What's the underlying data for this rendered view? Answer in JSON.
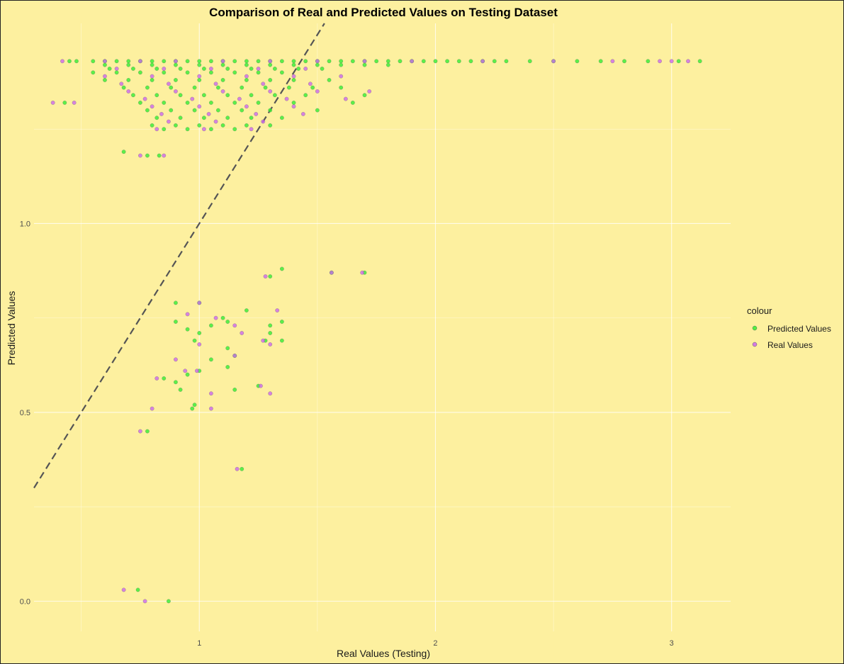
{
  "chart_data": {
    "type": "scatter",
    "title": "Comparison of Real and Predicted Values on Testing Dataset",
    "xlabel": "Real Values (Testing)",
    "ylabel": "Predicted Values",
    "xlim": [
      0.3,
      3.25
    ],
    "ylim": [
      -0.08,
      1.53
    ],
    "x_ticks": [
      1,
      2,
      3
    ],
    "x_tick_labels": [
      "1",
      "2",
      "3"
    ],
    "y_ticks": [
      0.0,
      0.5,
      1.0
    ],
    "y_tick_labels": [
      "0.0",
      "0.5",
      "1.0"
    ],
    "grid": true,
    "legend_title": "colour",
    "legend_position": "right",
    "reference_line": {
      "type": "y=x",
      "style": "dashed",
      "color": "#555555"
    },
    "series": [
      {
        "name": "Predicted Values",
        "color": "#33ee33",
        "points": [
          [
            0.45,
            1.43
          ],
          [
            0.48,
            1.43
          ],
          [
            0.55,
            1.43
          ],
          [
            0.6,
            1.43
          ],
          [
            0.65,
            1.43
          ],
          [
            0.7,
            1.43
          ],
          [
            0.75,
            1.43
          ],
          [
            0.8,
            1.43
          ],
          [
            0.85,
            1.43
          ],
          [
            0.9,
            1.43
          ],
          [
            0.95,
            1.43
          ],
          [
            1.0,
            1.43
          ],
          [
            1.05,
            1.43
          ],
          [
            1.1,
            1.43
          ],
          [
            1.15,
            1.43
          ],
          [
            1.2,
            1.43
          ],
          [
            1.25,
            1.43
          ],
          [
            1.3,
            1.43
          ],
          [
            1.35,
            1.43
          ],
          [
            1.4,
            1.43
          ],
          [
            1.45,
            1.43
          ],
          [
            1.5,
            1.43
          ],
          [
            1.55,
            1.43
          ],
          [
            1.6,
            1.43
          ],
          [
            1.65,
            1.43
          ],
          [
            1.7,
            1.43
          ],
          [
            1.75,
            1.43
          ],
          [
            1.8,
            1.43
          ],
          [
            1.85,
            1.43
          ],
          [
            1.9,
            1.43
          ],
          [
            1.95,
            1.43
          ],
          [
            2.0,
            1.43
          ],
          [
            2.05,
            1.43
          ],
          [
            2.1,
            1.43
          ],
          [
            2.15,
            1.43
          ],
          [
            2.2,
            1.43
          ],
          [
            2.25,
            1.43
          ],
          [
            2.3,
            1.43
          ],
          [
            2.4,
            1.43
          ],
          [
            2.5,
            1.43
          ],
          [
            2.6,
            1.43
          ],
          [
            2.7,
            1.43
          ],
          [
            2.8,
            1.43
          ],
          [
            2.9,
            1.43
          ],
          [
            3.03,
            1.43
          ],
          [
            3.12,
            1.43
          ],
          [
            0.6,
            1.42
          ],
          [
            0.7,
            1.42
          ],
          [
            0.8,
            1.42
          ],
          [
            0.9,
            1.42
          ],
          [
            1.0,
            1.42
          ],
          [
            1.1,
            1.42
          ],
          [
            1.2,
            1.42
          ],
          [
            1.3,
            1.42
          ],
          [
            1.4,
            1.42
          ],
          [
            1.5,
            1.42
          ],
          [
            1.6,
            1.42
          ],
          [
            1.7,
            1.42
          ],
          [
            1.8,
            1.42
          ],
          [
            0.62,
            1.41
          ],
          [
            0.72,
            1.41
          ],
          [
            0.82,
            1.41
          ],
          [
            0.92,
            1.41
          ],
          [
            1.02,
            1.41
          ],
          [
            1.12,
            1.41
          ],
          [
            1.22,
            1.41
          ],
          [
            1.32,
            1.41
          ],
          [
            1.42,
            1.41
          ],
          [
            1.52,
            1.41
          ],
          [
            0.55,
            1.4
          ],
          [
            0.65,
            1.4
          ],
          [
            0.75,
            1.4
          ],
          [
            0.85,
            1.4
          ],
          [
            0.95,
            1.4
          ],
          [
            1.05,
            1.4
          ],
          [
            1.15,
            1.4
          ],
          [
            1.25,
            1.4
          ],
          [
            1.35,
            1.4
          ],
          [
            0.6,
            1.38
          ],
          [
            0.7,
            1.38
          ],
          [
            0.8,
            1.38
          ],
          [
            0.9,
            1.38
          ],
          [
            1.0,
            1.38
          ],
          [
            1.1,
            1.38
          ],
          [
            1.2,
            1.38
          ],
          [
            1.3,
            1.38
          ],
          [
            1.4,
            1.38
          ],
          [
            1.55,
            1.38
          ],
          [
            0.68,
            1.36
          ],
          [
            0.78,
            1.36
          ],
          [
            0.88,
            1.36
          ],
          [
            0.98,
            1.36
          ],
          [
            1.08,
            1.36
          ],
          [
            1.18,
            1.36
          ],
          [
            1.28,
            1.36
          ],
          [
            1.38,
            1.36
          ],
          [
            1.48,
            1.36
          ],
          [
            1.6,
            1.36
          ],
          [
            0.72,
            1.34
          ],
          [
            0.82,
            1.34
          ],
          [
            0.92,
            1.34
          ],
          [
            1.02,
            1.34
          ],
          [
            1.12,
            1.34
          ],
          [
            1.22,
            1.34
          ],
          [
            1.32,
            1.34
          ],
          [
            1.45,
            1.34
          ],
          [
            1.7,
            1.34
          ],
          [
            0.75,
            1.32
          ],
          [
            0.85,
            1.32
          ],
          [
            0.95,
            1.32
          ],
          [
            1.05,
            1.32
          ],
          [
            1.15,
            1.32
          ],
          [
            1.25,
            1.32
          ],
          [
            1.4,
            1.32
          ],
          [
            1.65,
            1.32
          ],
          [
            0.78,
            1.3
          ],
          [
            0.88,
            1.3
          ],
          [
            0.98,
            1.3
          ],
          [
            1.08,
            1.3
          ],
          [
            1.18,
            1.3
          ],
          [
            1.3,
            1.3
          ],
          [
            1.5,
            1.3
          ],
          [
            0.82,
            1.28
          ],
          [
            0.92,
            1.28
          ],
          [
            1.02,
            1.28
          ],
          [
            1.12,
            1.28
          ],
          [
            1.22,
            1.28
          ],
          [
            1.35,
            1.28
          ],
          [
            0.8,
            1.26
          ],
          [
            0.9,
            1.26
          ],
          [
            1.0,
            1.26
          ],
          [
            1.1,
            1.26
          ],
          [
            1.2,
            1.26
          ],
          [
            1.3,
            1.26
          ],
          [
            0.85,
            1.25
          ],
          [
            0.95,
            1.25
          ],
          [
            1.05,
            1.25
          ],
          [
            1.15,
            1.25
          ],
          [
            0.68,
            1.19
          ],
          [
            0.78,
            1.18
          ],
          [
            0.83,
            1.18
          ],
          [
            0.43,
            1.32
          ],
          [
            0.9,
            0.79
          ],
          [
            1.0,
            0.79
          ],
          [
            1.35,
            0.88
          ],
          [
            1.56,
            0.87
          ],
          [
            1.7,
            0.87
          ],
          [
            1.3,
            0.86
          ],
          [
            0.9,
            0.74
          ],
          [
            0.95,
            0.72
          ],
          [
            1.05,
            0.73
          ],
          [
            1.1,
            0.75
          ],
          [
            1.12,
            0.74
          ],
          [
            1.2,
            0.77
          ],
          [
            1.3,
            0.73
          ],
          [
            1.35,
            0.74
          ],
          [
            1.3,
            0.71
          ],
          [
            1.35,
            0.69
          ],
          [
            1.28,
            0.69
          ],
          [
            1.0,
            0.71
          ],
          [
            0.98,
            0.69
          ],
          [
            1.12,
            0.67
          ],
          [
            1.15,
            0.65
          ],
          [
            1.12,
            0.62
          ],
          [
            1.05,
            0.64
          ],
          [
            0.85,
            0.59
          ],
          [
            0.9,
            0.58
          ],
          [
            0.95,
            0.6
          ],
          [
            1.0,
            0.61
          ],
          [
            1.15,
            0.56
          ],
          [
            1.25,
            0.57
          ],
          [
            0.92,
            0.56
          ],
          [
            0.97,
            0.51
          ],
          [
            0.98,
            0.52
          ],
          [
            0.78,
            0.45
          ],
          [
            1.18,
            0.35
          ],
          [
            0.74,
            0.03
          ],
          [
            0.87,
            0.0
          ]
        ]
      },
      {
        "name": "Real Values",
        "color": "#cc66ee",
        "points": [
          [
            0.42,
            1.43
          ],
          [
            0.6,
            1.43
          ],
          [
            0.75,
            1.43
          ],
          [
            0.9,
            1.43
          ],
          [
            1.1,
            1.43
          ],
          [
            1.3,
            1.43
          ],
          [
            1.5,
            1.43
          ],
          [
            1.7,
            1.43
          ],
          [
            1.9,
            1.43
          ],
          [
            2.2,
            1.43
          ],
          [
            2.5,
            1.43
          ],
          [
            2.75,
            1.43
          ],
          [
            2.95,
            1.43
          ],
          [
            3.0,
            1.43
          ],
          [
            3.07,
            1.43
          ],
          [
            0.65,
            1.41
          ],
          [
            0.85,
            1.41
          ],
          [
            1.05,
            1.41
          ],
          [
            1.25,
            1.41
          ],
          [
            1.45,
            1.41
          ],
          [
            0.6,
            1.39
          ],
          [
            0.8,
            1.39
          ],
          [
            1.0,
            1.39
          ],
          [
            1.2,
            1.39
          ],
          [
            1.4,
            1.39
          ],
          [
            1.6,
            1.39
          ],
          [
            0.67,
            1.37
          ],
          [
            0.87,
            1.37
          ],
          [
            1.07,
            1.37
          ],
          [
            1.27,
            1.37
          ],
          [
            1.47,
            1.37
          ],
          [
            0.7,
            1.35
          ],
          [
            0.9,
            1.35
          ],
          [
            1.1,
            1.35
          ],
          [
            1.3,
            1.35
          ],
          [
            1.5,
            1.35
          ],
          [
            1.72,
            1.35
          ],
          [
            0.77,
            1.33
          ],
          [
            0.97,
            1.33
          ],
          [
            1.17,
            1.33
          ],
          [
            1.37,
            1.33
          ],
          [
            1.62,
            1.33
          ],
          [
            0.8,
            1.31
          ],
          [
            1.0,
            1.31
          ],
          [
            1.2,
            1.31
          ],
          [
            1.4,
            1.31
          ],
          [
            0.84,
            1.29
          ],
          [
            1.04,
            1.29
          ],
          [
            1.24,
            1.29
          ],
          [
            1.44,
            1.29
          ],
          [
            0.87,
            1.27
          ],
          [
            1.07,
            1.27
          ],
          [
            1.27,
            1.27
          ],
          [
            0.82,
            1.25
          ],
          [
            1.02,
            1.25
          ],
          [
            1.22,
            1.25
          ],
          [
            0.38,
            1.32
          ],
          [
            0.47,
            1.32
          ],
          [
            0.75,
            1.18
          ],
          [
            0.85,
            1.18
          ],
          [
            1.0,
            0.79
          ],
          [
            1.28,
            0.86
          ],
          [
            1.56,
            0.87
          ],
          [
            1.69,
            0.87
          ],
          [
            0.95,
            0.76
          ],
          [
            1.07,
            0.75
          ],
          [
            1.33,
            0.77
          ],
          [
            1.15,
            0.73
          ],
          [
            1.27,
            0.69
          ],
          [
            1.3,
            0.68
          ],
          [
            1.0,
            0.68
          ],
          [
            1.18,
            0.71
          ],
          [
            0.9,
            0.64
          ],
          [
            0.94,
            0.61
          ],
          [
            0.99,
            0.61
          ],
          [
            1.15,
            0.65
          ],
          [
            1.26,
            0.57
          ],
          [
            1.3,
            0.55
          ],
          [
            1.05,
            0.55
          ],
          [
            0.82,
            0.59
          ],
          [
            0.8,
            0.51
          ],
          [
            1.05,
            0.51
          ],
          [
            0.75,
            0.45
          ],
          [
            1.16,
            0.35
          ],
          [
            0.68,
            0.03
          ],
          [
            0.77,
            0.0
          ]
        ]
      }
    ]
  }
}
